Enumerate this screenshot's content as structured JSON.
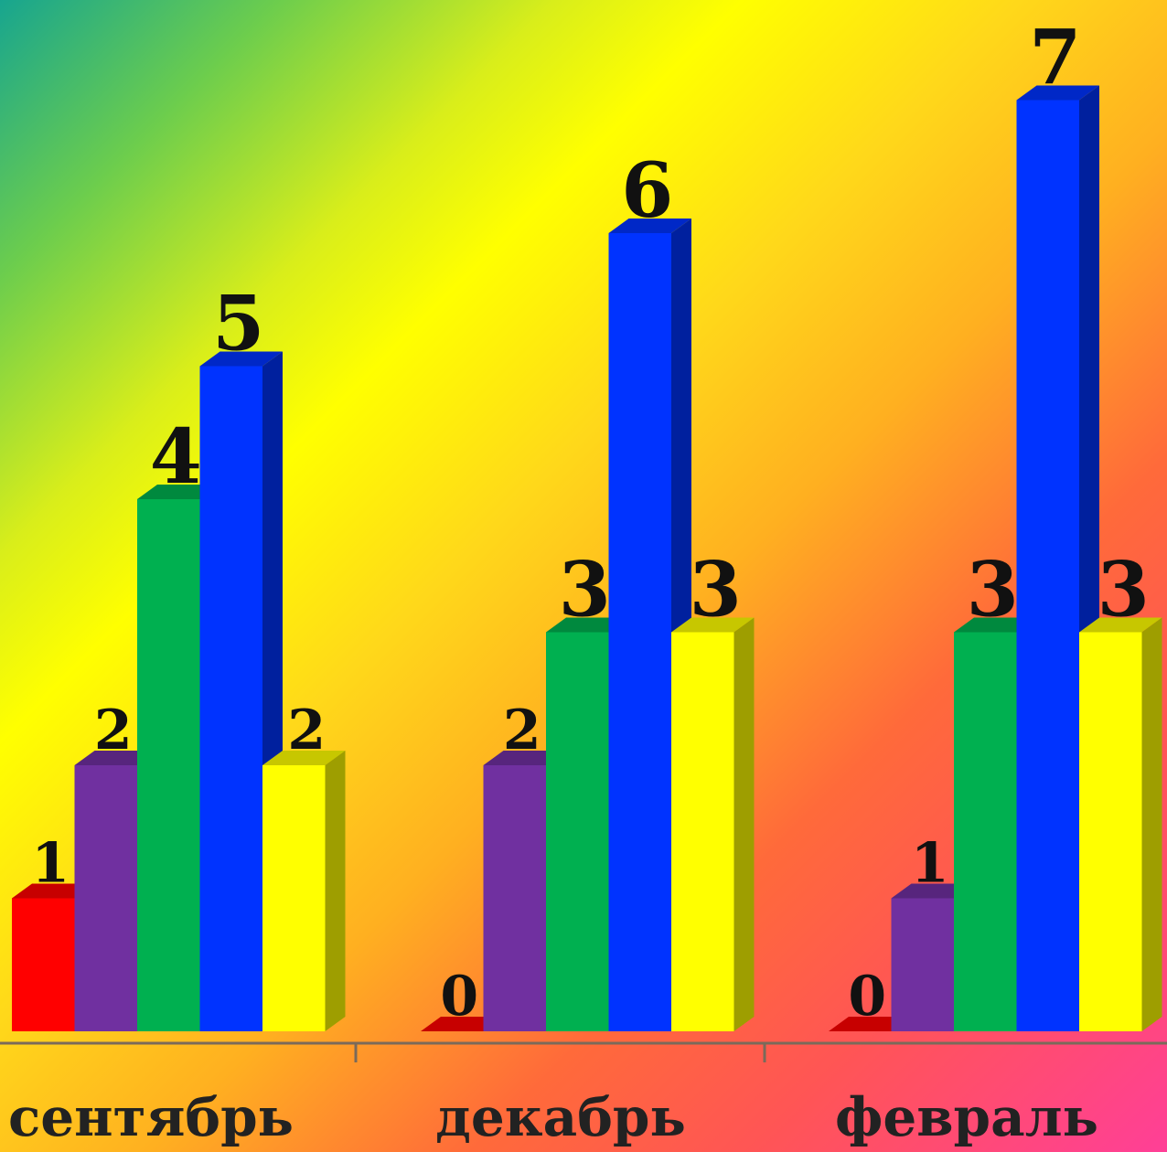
{
  "chart_data": {
    "type": "bar",
    "categories": [
      "сентябрь",
      "декабрь",
      "февраль"
    ],
    "series": [
      {
        "color": "#ff0000",
        "values": [
          1,
          0,
          0
        ]
      },
      {
        "color": "#7030a0",
        "values": [
          2,
          2,
          1
        ]
      },
      {
        "color": "#00b050",
        "values": [
          4,
          3,
          3
        ]
      },
      {
        "color": "#0033ff",
        "values": [
          5,
          6,
          7
        ]
      },
      {
        "color": "#ffff00",
        "values": [
          2,
          3,
          3
        ]
      }
    ],
    "data_labels": [
      [
        "1",
        "2",
        "4",
        "5",
        "2"
      ],
      [
        "0",
        "2",
        "3",
        "6",
        "3"
      ],
      [
        "0",
        "1",
        "3",
        "7",
        "3"
      ]
    ],
    "ylim": [
      0,
      7
    ],
    "grid": false,
    "legend": "none",
    "bar_style": "3d"
  }
}
